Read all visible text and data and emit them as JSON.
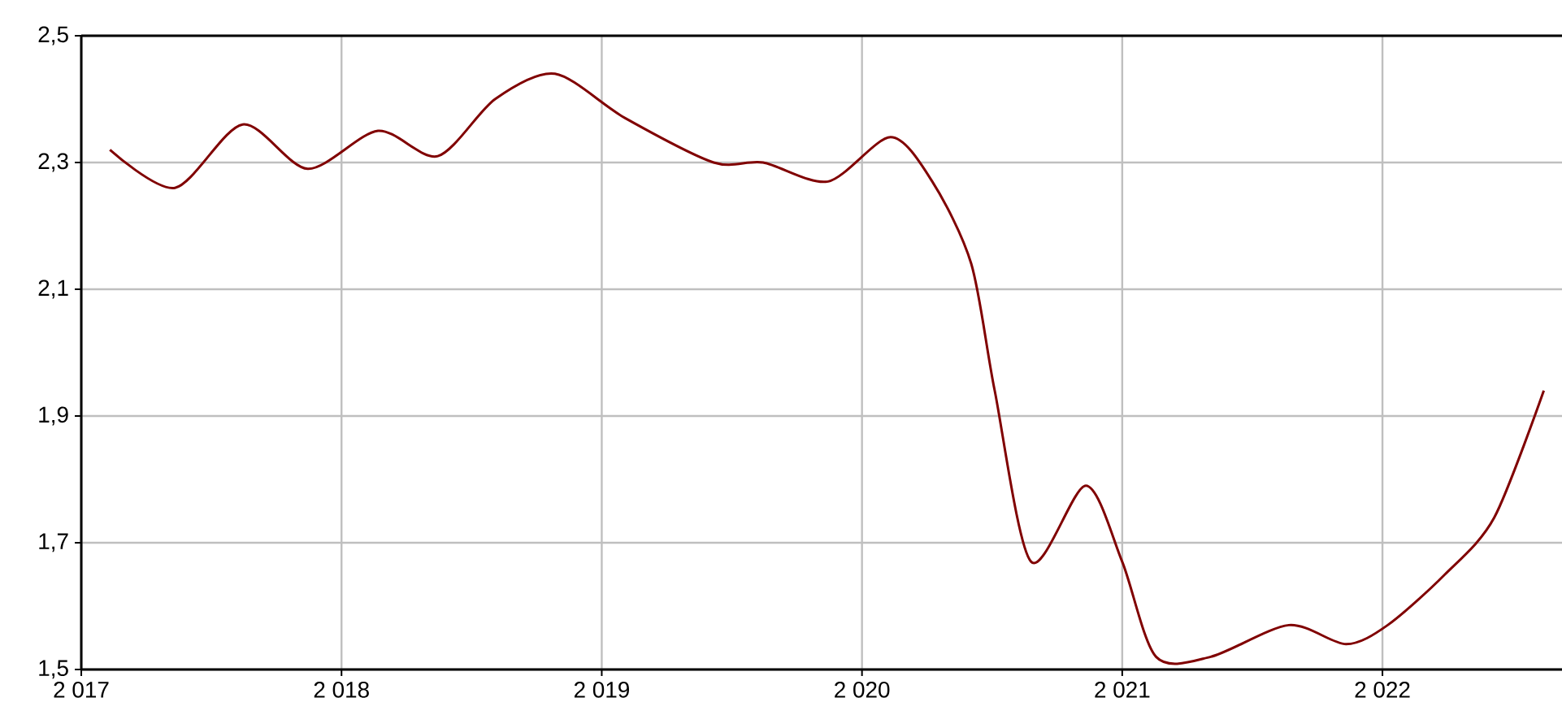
{
  "chart_data": {
    "type": "line",
    "x": [
      2017.11,
      2017.36,
      2017.62,
      2017.87,
      2018.14,
      2018.37,
      2018.59,
      2018.82,
      2019.09,
      2019.43,
      2019.62,
      2019.87,
      2020.11,
      2020.27,
      2020.42,
      2020.51,
      2020.65,
      2020.86,
      2021.0,
      2021.13,
      2021.34,
      2021.64,
      2021.86,
      2022.02,
      2022.24,
      2022.43,
      2022.62
    ],
    "series": [
      {
        "color": "#800000",
        "values": [
          2.32,
          2.26,
          2.36,
          2.29,
          2.35,
          2.31,
          2.4,
          2.44,
          2.37,
          2.3,
          2.3,
          2.27,
          2.34,
          2.27,
          2.14,
          1.94,
          1.67,
          1.79,
          1.67,
          1.52,
          1.52,
          1.57,
          1.54,
          1.57,
          1.65,
          1.74,
          1.94
        ]
      }
    ],
    "xlim": [
      2017,
      2022.69
    ],
    "xticks": [
      {
        "value": 2017,
        "label": "2 017"
      },
      {
        "value": 2018,
        "label": "2 018"
      },
      {
        "value": 2019,
        "label": "2 019"
      },
      {
        "value": 2020,
        "label": "2 020"
      },
      {
        "value": 2021,
        "label": "2 021"
      },
      {
        "value": 2022,
        "label": "2 022"
      }
    ],
    "ylim": [
      1.5,
      2.5
    ],
    "yticks": [
      {
        "value": 1.5,
        "label": "1,5"
      },
      {
        "value": 1.7,
        "label": "1,7"
      },
      {
        "value": 1.9,
        "label": "1,9"
      },
      {
        "value": 2.1,
        "label": "2,1"
      },
      {
        "value": 2.3,
        "label": "2,3"
      },
      {
        "value": 2.5,
        "label": "2,5"
      }
    ],
    "grid": true,
    "marker": "none",
    "line_style": "solid"
  }
}
